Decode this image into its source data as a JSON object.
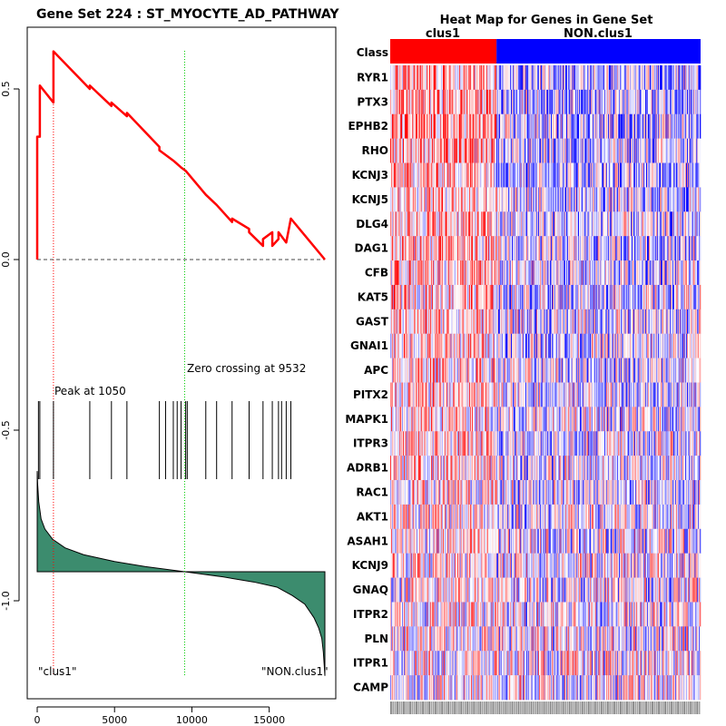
{
  "chart_data": [
    {
      "type": "line",
      "panel": "enrichment-plot",
      "title": "Gene Set  224 : ST_MYOCYTE_AD_PATHWAY",
      "xlim": [
        0,
        18600
      ],
      "ylim": [
        -1.22,
        0.68
      ],
      "x_ticks": [
        0,
        5000,
        10000,
        15000
      ],
      "x_tick_labels": [
        "0",
        "5000",
        "10000",
        "15000"
      ],
      "y_ticks": [
        0.5,
        0.0,
        -0.5,
        -1.0
      ],
      "y_tick_labels": [
        "0.5",
        "0.0",
        "-0.5",
        "-1.0"
      ],
      "running_es": {
        "name": "Running enrichment score",
        "color": "#ff0000",
        "x": [
          0,
          0,
          80,
          80,
          170,
          170,
          1050,
          1050,
          3400,
          3400,
          4800,
          4800,
          5800,
          5800,
          7900,
          7900,
          8800,
          8800,
          9050,
          9050,
          9300,
          9300,
          9600,
          9600,
          10900,
          10900,
          11600,
          11600,
          12600,
          12600,
          13700,
          13700,
          14600,
          14600,
          15200,
          15200,
          15600,
          15600,
          16100,
          16100,
          16400,
          16400,
          18600
        ],
        "y": [
          0.0,
          0.36,
          0.36,
          0.36,
          0.36,
          0.51,
          0.46,
          0.61,
          0.5,
          0.51,
          0.45,
          0.46,
          0.42,
          0.43,
          0.33,
          0.32,
          0.29,
          0.29,
          0.28,
          0.28,
          0.27,
          0.27,
          0.26,
          0.26,
          0.19,
          0.19,
          0.16,
          0.16,
          0.11,
          0.12,
          0.09,
          0.08,
          0.04,
          0.06,
          0.08,
          0.04,
          0.06,
          0.08,
          0.05,
          0.05,
          0.12,
          0.12,
          0.0
        ]
      },
      "baseline": 0.0,
      "peak_position": 1050,
      "peak_label": "Peak at 1050",
      "zero_crossing_position": 9532,
      "zero_crossing_label": "Zero crossing at 9532",
      "hit_positions": [
        80,
        170,
        1050,
        3400,
        4800,
        5800,
        7900,
        8300,
        8800,
        9050,
        9300,
        9600,
        9700,
        10900,
        11600,
        12600,
        13700,
        14600,
        15200,
        15600,
        15800,
        16100,
        16400
      ],
      "ranked_metric": {
        "name": "Ranked list metric",
        "fill": "#3c8c6e",
        "baseline": -0.915,
        "x": [
          0,
          30,
          100,
          250,
          500,
          1000,
          1800,
          3000,
          5000,
          7000,
          9532,
          12000,
          14000,
          15500,
          16500,
          17300,
          17900,
          18200,
          18400,
          18500,
          18560,
          18600
        ],
        "y": [
          -0.62,
          -0.66,
          -0.71,
          -0.76,
          -0.79,
          -0.82,
          -0.845,
          -0.865,
          -0.885,
          -0.9,
          -0.915,
          -0.93,
          -0.945,
          -0.96,
          -0.985,
          -1.01,
          -1.05,
          -1.08,
          -1.11,
          -1.15,
          -1.19,
          -1.22
        ]
      },
      "left_class_label": "\"clus1\"",
      "right_class_label": "\"NON.clus1\""
    },
    {
      "type": "heatmap",
      "panel": "gene-heatmap",
      "title": "Heat Map for Genes in Gene Set",
      "class_row_label": "Class",
      "class_groups": [
        {
          "name": "clus1",
          "color": "#ff0000",
          "columns": 25
        },
        {
          "name": "NON.clus1",
          "color": "#0000ff",
          "columns": 48
        }
      ],
      "genes": [
        "RYR1",
        "PTX3",
        "EPHB2",
        "RHO",
        "KCNJ3",
        "KCNJ5",
        "DLG4",
        "DAG1",
        "CFB",
        "KAT5",
        "GAST",
        "GNAI1",
        "APC",
        "PITX2",
        "MAPK1",
        "ITPR3",
        "ADRB1",
        "RAC1",
        "AKT1",
        "ASAH1",
        "KCNJ9",
        "GNAQ",
        "ITPR2",
        "PLN",
        "ITPR1",
        "CAMP"
      ],
      "low_color": "#0000ff",
      "mid_color": "#ffffff",
      "high_color": "#ff0000"
    }
  ]
}
